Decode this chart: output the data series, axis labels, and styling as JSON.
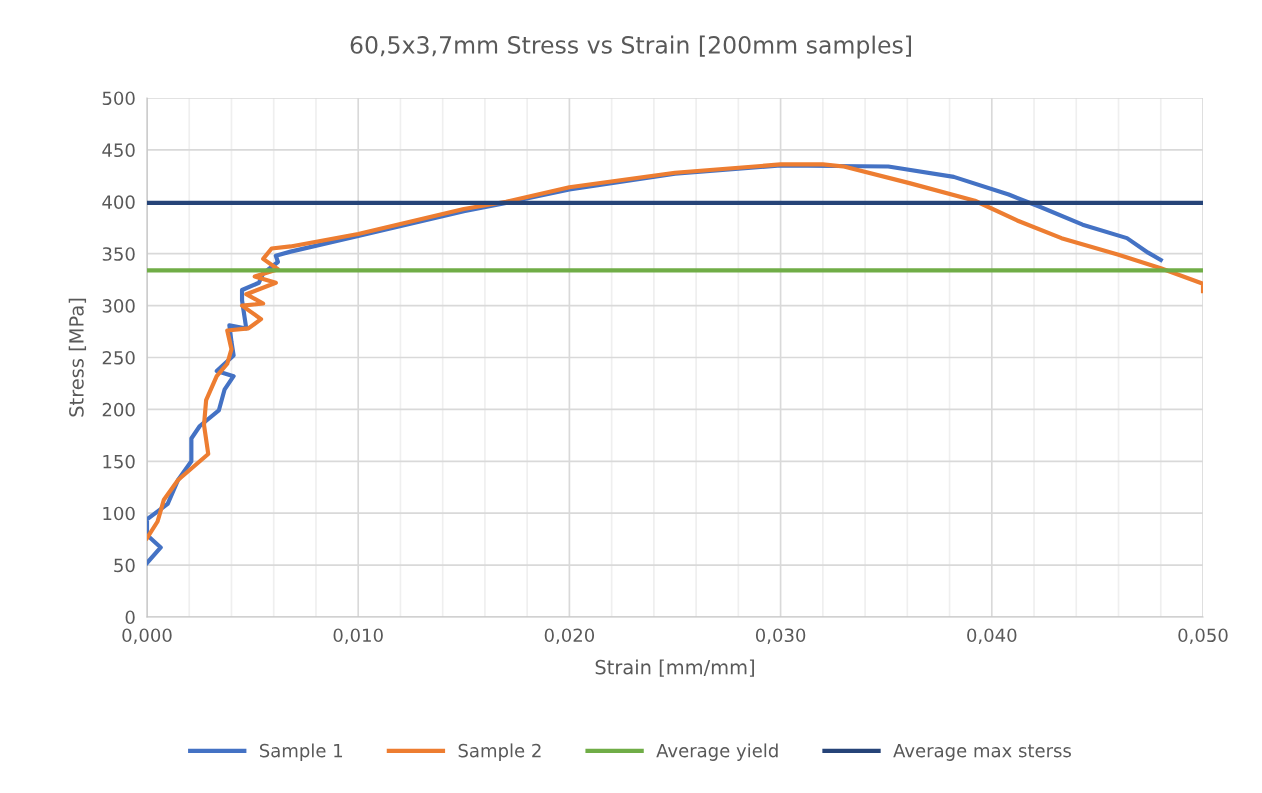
{
  "chart_data": {
    "type": "line",
    "title": "60,5x3,7mm Stress vs Strain [200mm samples]",
    "xlabel": "Strain [mm/mm]",
    "ylabel": "Stress [MPa]",
    "xlim": [
      0,
      0.05
    ],
    "ylim": [
      0,
      500
    ],
    "xticks": [
      {
        "value": 0,
        "label": "0,000"
      },
      {
        "value": 0.002,
        "label": null
      },
      {
        "value": 0.004,
        "label": null
      },
      {
        "value": 0.006,
        "label": null
      },
      {
        "value": 0.008,
        "label": null
      },
      {
        "value": 0.01,
        "label": "0,010"
      },
      {
        "value": 0.012,
        "label": null
      },
      {
        "value": 0.014,
        "label": null
      },
      {
        "value": 0.016,
        "label": null
      },
      {
        "value": 0.018,
        "label": null
      },
      {
        "value": 0.02,
        "label": "0,020"
      },
      {
        "value": 0.022,
        "label": null
      },
      {
        "value": 0.024,
        "label": null
      },
      {
        "value": 0.026,
        "label": null
      },
      {
        "value": 0.028,
        "label": null
      },
      {
        "value": 0.03,
        "label": "0,030"
      },
      {
        "value": 0.032,
        "label": null
      },
      {
        "value": 0.034,
        "label": null
      },
      {
        "value": 0.036,
        "label": null
      },
      {
        "value": 0.038,
        "label": null
      },
      {
        "value": 0.04,
        "label": "0,040"
      },
      {
        "value": 0.042,
        "label": null
      },
      {
        "value": 0.044,
        "label": null
      },
      {
        "value": 0.046,
        "label": null
      },
      {
        "value": 0.048,
        "label": null
      },
      {
        "value": 0.05,
        "label": "0,050"
      }
    ],
    "yticks": [
      0,
      50,
      100,
      150,
      200,
      250,
      300,
      350,
      400,
      450,
      500
    ],
    "grid": true,
    "legend": "bottom",
    "marker": "none",
    "line_style": "solid",
    "series": [
      {
        "name": "Sample 1",
        "color": "#4472c4",
        "x": [
          0,
          0.00065,
          0,
          0,
          0.00098,
          0.00147,
          0.0021,
          0.0021,
          0.0025,
          0.0034,
          0.00367,
          0.0041,
          0.0033,
          0.0041,
          0.004,
          0.0039,
          0.0047,
          0.0045,
          0.0045,
          0.0053,
          0.0055,
          0.0062,
          0.0061,
          0.0068,
          0.01,
          0.015,
          0.017,
          0.02,
          0.025,
          0.03,
          0.0351,
          0.0382,
          0.0408,
          0.0423,
          0.0443,
          0.0464,
          0.0474,
          0.048
        ],
        "values": [
          52,
          67,
          79,
          94,
          109,
          132,
          150,
          172,
          184,
          199,
          219,
          232,
          237,
          252,
          265,
          281,
          278,
          305,
          315,
          322,
          331,
          342,
          348,
          352,
          367,
          391,
          399,
          412,
          427,
          435,
          434,
          424,
          407,
          395,
          378,
          365,
          351,
          344
        ]
      },
      {
        "name": "Sample 2",
        "color": "#ed7d31",
        "x": [
          0,
          0.0005,
          0.0008,
          0.00147,
          0.0029,
          0.0027,
          0.0028,
          0.0033,
          0.0038,
          0.004,
          0.0038,
          0.0048,
          0.0054,
          0.0045,
          0.0055,
          0.0047,
          0.0061,
          0.0051,
          0.0062,
          0.0055,
          0.0059,
          0.0068,
          0.01,
          0.015,
          0.017,
          0.02,
          0.025,
          0.03,
          0.032,
          0.033,
          0.0361,
          0.0392,
          0.0412,
          0.0433,
          0.046,
          0.048,
          0.05,
          0.05
        ],
        "values": [
          76,
          92,
          113,
          132,
          157,
          185,
          209,
          232,
          244,
          258,
          276,
          278,
          287,
          300,
          302,
          311,
          322,
          328,
          335,
          345,
          355,
          357,
          369,
          393,
          400,
          414,
          428,
          436,
          436,
          434,
          418,
          401,
          382,
          365,
          349,
          336,
          321,
          314
        ]
      },
      {
        "name": "Average yield",
        "color": "#70ad47",
        "x": [
          0,
          0.05
        ],
        "values": [
          334,
          334
        ]
      },
      {
        "name": "Average max sterss",
        "color": "#264478",
        "x": [
          0,
          0.05
        ],
        "values": [
          399,
          399
        ]
      }
    ]
  }
}
